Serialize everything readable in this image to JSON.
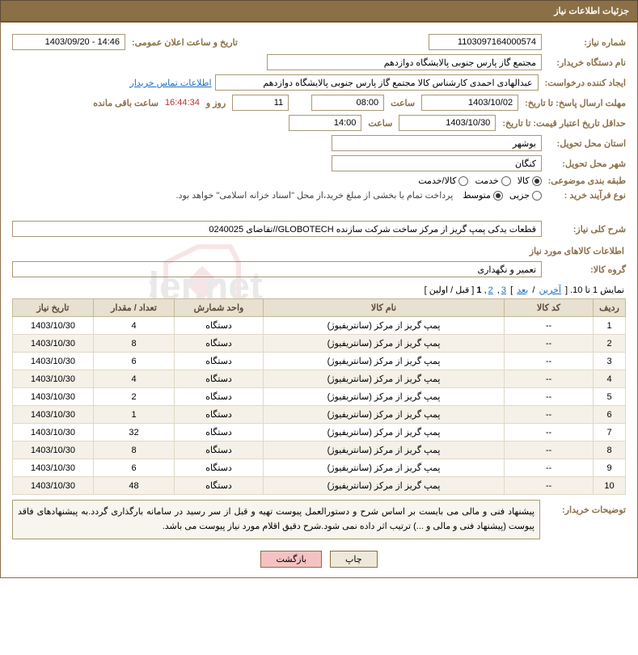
{
  "header": "جزئیات اطلاعات نیاز",
  "labels": {
    "requestNo": "شماره نیاز:",
    "announceDate": "تاریخ و ساعت اعلان عمومی:",
    "buyerOrg": "نام دستگاه خریدار:",
    "requester": "ایجاد کننده درخواست:",
    "responseDeadline": "مهلت ارسال پاسخ: تا تاریخ:",
    "hour": "ساعت",
    "daysAnd": "روز و",
    "hoursRemain": "ساعت باقی مانده",
    "priceValidity": "حداقل تاریخ اعتبار قیمت: تا تاریخ:",
    "deliveryProvince": "استان محل تحویل:",
    "deliveryCity": "شهر محل تحویل:",
    "subjectClass": "طبقه بندی موضوعی:",
    "purchaseType": "نوع فرآیند خرید :",
    "overallDesc": "شرح کلی نیاز:",
    "goodsGroup": "گروه کالا:",
    "buyerNotes": "توضیحات خریدار:",
    "contactLink": "اطلاعات تماس خریدار"
  },
  "fields": {
    "requestNo": "1103097164000574",
    "announceDate": "14:46 - 1403/09/20",
    "buyerOrg": "مجتمع گاز پارس جنوبی  پالایشگاه دوازدهم",
    "requester": "عبدالهادی احمدی کارشناس کالا مجتمع گاز پارس جنوبی  پالایشگاه دوازدهم",
    "responseDate": "1403/10/02",
    "responseHour": "08:00",
    "daysLeft": "11",
    "timeLeft": "16:44:34",
    "priceValidityDate": "1403/10/30",
    "priceValidityHour": "14:00",
    "province": "بوشهر",
    "city": "کنگان",
    "overallDesc": "قطعات یدکی پمپ گریز از مرکز ساخت شرکت سازنده GLOBOTECH//تقاضای 0240025",
    "goodsGroup": "تعمیر و نگهداری",
    "buyerNotes": "پیشنهاد فنی و مالی می بایست بر اساس شرح و دستورالعمل پیوست تهیه و قبل از سر رسید در سامانه بارگذاری گردد.به پیشنهادهای فاقد پیوست (پیشنهاد فنی و مالی و ...) ترتیب اثر داده نمی شود.شرح دقیق اقلام مورد نیاز پیوست می باشد."
  },
  "radios": {
    "subject": [
      {
        "label": "کالا",
        "checked": true
      },
      {
        "label": "خدمت",
        "checked": false
      },
      {
        "label": "کالا/خدمت",
        "checked": false
      }
    ],
    "purchase": [
      {
        "label": "جزیی",
        "checked": false
      },
      {
        "label": "متوسط",
        "checked": true
      }
    ],
    "purchaseNote": "پرداخت تمام یا بخشی از مبلغ خرید،از محل \"اسناد خزانه اسلامی\" خواهد بود."
  },
  "goodsSection": "اطلاعات کالاهای مورد نیاز",
  "pagination": {
    "text1": "نمایش 1 تا 10. [ ",
    "last": "آخرین",
    "sep1": " / ",
    "next": "بعد",
    "sep2": "] ",
    "p3": "3",
    "p2": "2",
    "p1": "1",
    "sep3": " [",
    "prev": "قبل",
    "sep4": " / ",
    "first": "اولین",
    "text2": "]"
  },
  "table": {
    "columns": [
      "ردیف",
      "کد کالا",
      "نام کالا",
      "واحد شمارش",
      "تعداد / مقدار",
      "تاریخ نیاز"
    ],
    "rows": [
      [
        "1",
        "--",
        "پمپ گریز از مرکز (سانتریفیوژ)",
        "دستگاه",
        "4",
        "1403/10/30"
      ],
      [
        "2",
        "--",
        "پمپ گریز از مرکز (سانتریفیوژ)",
        "دستگاه",
        "8",
        "1403/10/30"
      ],
      [
        "3",
        "--",
        "پمپ گریز از مرکز (سانتریفیوژ)",
        "دستگاه",
        "6",
        "1403/10/30"
      ],
      [
        "4",
        "--",
        "پمپ گریز از مرکز (سانتریفیوژ)",
        "دستگاه",
        "4",
        "1403/10/30"
      ],
      [
        "5",
        "--",
        "پمپ گریز از مرکز (سانتریفیوژ)",
        "دستگاه",
        "2",
        "1403/10/30"
      ],
      [
        "6",
        "--",
        "پمپ گریز از مرکز (سانتریفیوژ)",
        "دستگاه",
        "1",
        "1403/10/30"
      ],
      [
        "7",
        "--",
        "پمپ گریز از مرکز (سانتریفیوژ)",
        "دستگاه",
        "32",
        "1403/10/30"
      ],
      [
        "8",
        "--",
        "پمپ گریز از مرکز (سانتریفیوژ)",
        "دستگاه",
        "8",
        "1403/10/30"
      ],
      [
        "9",
        "--",
        "پمپ گریز از مرکز (سانتریفیوژ)",
        "دستگاه",
        "6",
        "1403/10/30"
      ],
      [
        "10",
        "--",
        "پمپ گریز از مرکز (سانتریفیوژ)",
        "دستگاه",
        "48",
        "1403/10/30"
      ]
    ],
    "colWidths": [
      "40px",
      "110px",
      "auto",
      "110px",
      "100px",
      "100px"
    ]
  },
  "buttons": {
    "print": "چاپ",
    "back": "بازگشت"
  },
  "colors": {
    "primary": "#8b6f47",
    "headerRow": "#e8e0d0",
    "altRow": "#f5f1e8",
    "link": "#2070c0",
    "backBtn": "#f4c2c2"
  }
}
